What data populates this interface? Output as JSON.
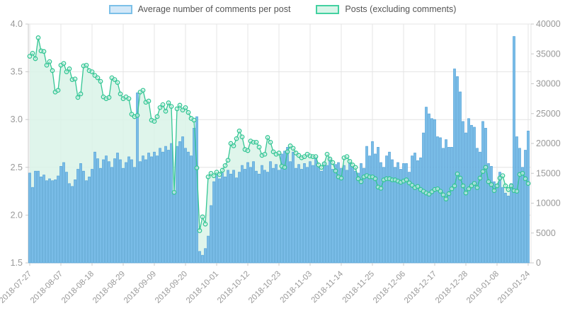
{
  "legend": {
    "series1": "Average number of comments per post",
    "series2": "Posts (excluding comments)"
  },
  "colors": {
    "bar_fill": "#79bce7",
    "bar_stroke": "#54a3d8",
    "line": "#34c694",
    "area_fill": "#d9f3e8",
    "marker_fill": "#eefaf5",
    "grid": "#e4e4e4",
    "axis_line": "#c8c8c8",
    "tick_text": "#999999"
  },
  "chart_data": {
    "type": "bar",
    "subtype": "bar+line dual axis, daily values",
    "title": "",
    "xlabel": "",
    "ylabel_left": "",
    "ylabel_right": "",
    "grid": true,
    "legend_position": "top-center",
    "x_tick_labels": [
      "2018-07-27",
      "2018-08-07",
      "2018-08-18",
      "2018-08-29",
      "2018-09-09",
      "2018-09-20",
      "2018-10-01",
      "2018-10-12",
      "2018-10-23",
      "2018-11-03",
      "2018-11-14",
      "2018-11-25",
      "2018-12-06",
      "2018-12-17",
      "2018-12-28",
      "2019-01-08",
      "2019-01-24"
    ],
    "x_tick_every": 11,
    "left_axis": {
      "min": 1.5,
      "max": 4.0,
      "tick_labels": [
        "4.0",
        "3.5",
        "3.0",
        "2.5",
        "2.0",
        "1.5"
      ],
      "ticks": [
        4.0,
        3.5,
        3.0,
        2.5,
        2.0,
        1.5
      ]
    },
    "right_axis": {
      "min": 0,
      "max": 40000,
      "ticks": [
        40000,
        35000,
        30000,
        25000,
        20000,
        15000,
        10000,
        5000,
        0
      ]
    },
    "series": [
      {
        "name": "Average number of comments per post",
        "render": "bar",
        "axis": "left",
        "values": [
          2.44,
          2.29,
          2.46,
          2.46,
          2.4,
          2.42,
          2.36,
          2.38,
          2.36,
          2.37,
          2.41,
          2.51,
          2.55,
          2.45,
          2.33,
          2.3,
          2.37,
          2.48,
          2.54,
          2.46,
          2.36,
          2.4,
          2.48,
          2.66,
          2.59,
          2.49,
          2.58,
          2.62,
          2.56,
          2.5,
          2.59,
          2.65,
          2.58,
          2.49,
          2.55,
          2.61,
          2.58,
          2.5,
          3.28,
          2.56,
          2.62,
          2.58,
          2.65,
          2.61,
          2.66,
          2.62,
          2.7,
          2.66,
          2.72,
          2.68,
          2.75,
          2.24,
          2.72,
          2.77,
          2.82,
          2.7,
          2.66,
          2.62,
          2.91,
          3.03,
          1.62,
          1.58,
          1.65,
          1.78,
          2.1,
          2.35,
          2.42,
          2.38,
          2.44,
          2.4,
          2.47,
          2.43,
          2.47,
          2.39,
          2.45,
          2.52,
          2.48,
          2.55,
          2.5,
          2.56,
          2.46,
          2.43,
          2.52,
          2.47,
          2.45,
          2.56,
          2.49,
          2.53,
          2.47,
          2.64,
          2.67,
          2.71,
          2.56,
          2.66,
          2.49,
          2.53,
          2.48,
          2.54,
          2.5,
          2.56,
          2.52,
          2.61,
          2.5,
          2.46,
          2.55,
          2.52,
          2.59,
          2.48,
          2.53,
          2.55,
          2.49,
          2.52,
          2.47,
          2.55,
          2.5,
          2.46,
          2.44,
          2.54,
          2.49,
          2.72,
          2.62,
          2.77,
          2.64,
          2.71,
          2.55,
          2.5,
          2.62,
          2.66,
          2.58,
          2.5,
          2.55,
          2.48,
          2.54,
          2.54,
          2.45,
          2.62,
          2.65,
          2.57,
          2.6,
          2.86,
          3.13,
          3.06,
          3.01,
          3.0,
          2.82,
          2.81,
          2.7,
          2.79,
          2.71,
          2.71,
          3.53,
          3.45,
          3.29,
          2.98,
          2.86,
          3.01,
          2.94,
          2.92,
          2.7,
          2.66,
          2.98,
          2.91,
          2.54,
          2.51,
          2.35,
          2.32,
          2.45,
          2.29,
          2.23,
          2.2,
          2.33,
          3.87,
          2.82,
          2.7,
          2.5,
          2.68,
          2.88
        ]
      },
      {
        "name": "Posts (excluding comments)",
        "render": "line+area+markers",
        "axis": "right",
        "values": [
          34600,
          35100,
          34200,
          37700,
          35500,
          35400,
          33100,
          33700,
          32200,
          28600,
          28900,
          33100,
          33400,
          32000,
          32500,
          30700,
          30800,
          27700,
          28300,
          33000,
          33100,
          32200,
          32000,
          31400,
          31000,
          30400,
          27800,
          27500,
          27700,
          31000,
          30700,
          30200,
          28300,
          27500,
          27800,
          27500,
          24900,
          24500,
          24700,
          28600,
          28900,
          26900,
          27100,
          23900,
          23700,
          24500,
          26000,
          26500,
          25400,
          26800,
          26200,
          11800,
          25800,
          26400,
          25600,
          26000,
          25200,
          24200,
          23900,
          15900,
          5400,
          7700,
          6500,
          14400,
          15000,
          14600,
          15200,
          14800,
          15500,
          16300,
          17200,
          20000,
          19600,
          20800,
          22100,
          21100,
          19000,
          18800,
          20400,
          20200,
          20200,
          19400,
          18000,
          18200,
          21000,
          20200,
          18600,
          18200,
          18400,
          16200,
          16000,
          18600,
          19600,
          19200,
          18400,
          18000,
          17600,
          17800,
          18200,
          17900,
          17800,
          17800,
          16400,
          16000,
          16600,
          18200,
          17400,
          16800,
          15400,
          14400,
          14200,
          17600,
          17800,
          17000,
          16400,
          16000,
          14100,
          13600,
          14400,
          14600,
          14400,
          14400,
          14100,
          12700,
          12500,
          13900,
          14100,
          14100,
          13900,
          13900,
          13700,
          13500,
          13700,
          13900,
          13400,
          13000,
          12600,
          12800,
          12300,
          12000,
          11700,
          11500,
          11900,
          12300,
          12400,
          12000,
          11400,
          10700,
          11600,
          12400,
          12900,
          14900,
          14200,
          12900,
          11700,
          12400,
          12900,
          13300,
          12600,
          14200,
          15300,
          16000,
          13600,
          13100,
          12100,
          12900,
          14200,
          14600,
          12900,
          12300,
          12900,
          12100,
          12000,
          14800,
          15000,
          14100,
          13300
        ]
      }
    ]
  }
}
